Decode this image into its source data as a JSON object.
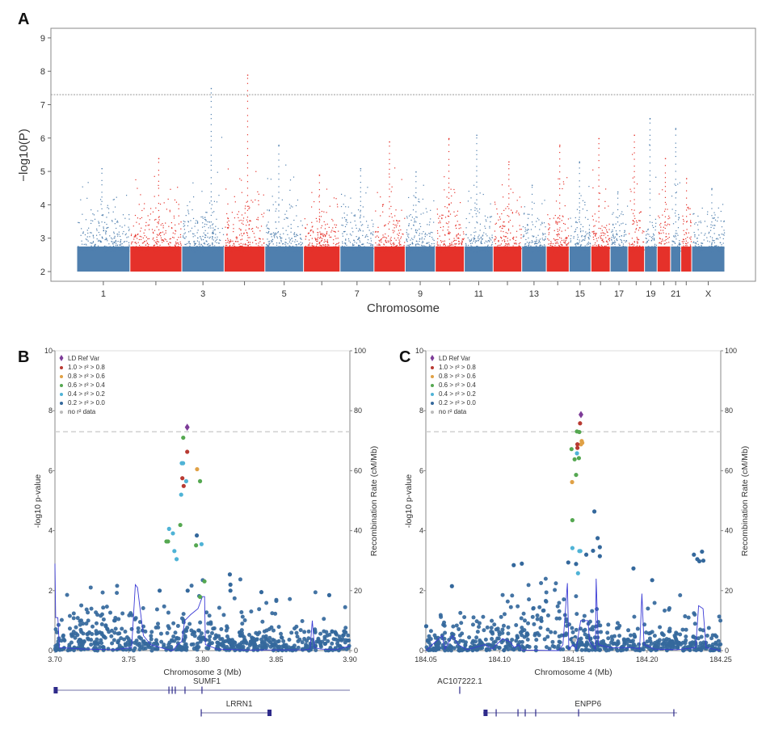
{
  "panels": {
    "a": "A",
    "b": "B",
    "c": "C"
  },
  "chart_data": [
    {
      "type": "scatter",
      "subtype": "manhattan",
      "xlabel": "Chromosome",
      "ylabel": "−log10(P)",
      "ylim": [
        2,
        9
      ],
      "yticks": [
        "2",
        "3",
        "4",
        "5",
        "6",
        "7",
        "8",
        "9"
      ],
      "significance_line": 7.3,
      "colors": {
        "odd": "#4f7fae",
        "even": "#e5312a"
      },
      "chromosomes": [
        {
          "name": "1",
          "length_mb": 249,
          "max": 5.1,
          "label": "1"
        },
        {
          "name": "2",
          "length_mb": 243,
          "max": 5.4,
          "label": ""
        },
        {
          "name": "3",
          "length_mb": 198,
          "max": 7.5,
          "label": "3"
        },
        {
          "name": "4",
          "length_mb": 191,
          "max": 7.9,
          "label": ""
        },
        {
          "name": "5",
          "length_mb": 181,
          "max": 5.8,
          "label": "5"
        },
        {
          "name": "6",
          "length_mb": 171,
          "max": 4.9,
          "label": ""
        },
        {
          "name": "7",
          "length_mb": 159,
          "max": 5.1,
          "label": "7"
        },
        {
          "name": "8",
          "length_mb": 146,
          "max": 5.9,
          "label": ""
        },
        {
          "name": "9",
          "length_mb": 141,
          "max": 5.0,
          "label": "9"
        },
        {
          "name": "10",
          "length_mb": 136,
          "max": 6.0,
          "label": ""
        },
        {
          "name": "11",
          "length_mb": 135,
          "max": 6.1,
          "label": "11"
        },
        {
          "name": "12",
          "length_mb": 134,
          "max": 5.3,
          "label": ""
        },
        {
          "name": "13",
          "length_mb": 115,
          "max": 4.6,
          "label": "13"
        },
        {
          "name": "14",
          "length_mb": 107,
          "max": 5.8,
          "label": ""
        },
        {
          "name": "15",
          "length_mb": 102,
          "max": 5.3,
          "label": "15"
        },
        {
          "name": "16",
          "length_mb": 90,
          "max": 6.0,
          "label": ""
        },
        {
          "name": "17",
          "length_mb": 83,
          "max": 4.4,
          "label": "17"
        },
        {
          "name": "18",
          "length_mb": 78,
          "max": 6.1,
          "label": ""
        },
        {
          "name": "19",
          "length_mb": 59,
          "max": 6.6,
          "label": "19"
        },
        {
          "name": "20",
          "length_mb": 63,
          "max": 5.4,
          "label": ""
        },
        {
          "name": "21",
          "length_mb": 48,
          "max": 6.3,
          "label": "21"
        },
        {
          "name": "22",
          "length_mb": 51,
          "max": 4.8,
          "label": ""
        },
        {
          "name": "X",
          "length_mb": 155,
          "max": 4.5,
          "label": "X"
        }
      ]
    },
    {
      "type": "scatter",
      "subtype": "locuszoom",
      "xlabel": "Chromosome 3 (Mb)",
      "ylabel": "-log10 p-value",
      "y2label": "Recombination Rate (cM/Mb)",
      "xlim": [
        3.7,
        3.9
      ],
      "xticks": [
        "3.70",
        "3.75",
        "3.80",
        "3.85",
        "3.90"
      ],
      "ylim": [
        0,
        10
      ],
      "yticks": [
        "0",
        "2",
        "4",
        "6",
        "8",
        "10"
      ],
      "y2lim": [
        0,
        100
      ],
      "y2ticks": [
        "0",
        "20",
        "40",
        "60",
        "80",
        "100"
      ],
      "significance_line": 7.3,
      "legend": [
        {
          "label": "LD Ref Var",
          "key": "ref"
        },
        {
          "label": "1.0 > r² > 0.8",
          "key": "r08"
        },
        {
          "label": "0.8 > r² > 0.6",
          "key": "r06"
        },
        {
          "label": "0.6 > r² > 0.4",
          "key": "r04"
        },
        {
          "label": "0.4 > r² > 0.2",
          "key": "r02"
        },
        {
          "label": "0.2 > r² > 0.0",
          "key": "r00"
        },
        {
          "label": "no r² data",
          "key": "na"
        }
      ],
      "points": [
        [
          3.7897,
          7.45,
          "ref"
        ],
        [
          3.787,
          7.1,
          "r04"
        ],
        [
          3.7897,
          6.63,
          "r08"
        ],
        [
          3.786,
          6.25,
          "r02"
        ],
        [
          3.7869,
          6.25,
          "r02"
        ],
        [
          3.7964,
          6.05,
          "r06"
        ],
        [
          3.7864,
          5.75,
          "r08"
        ],
        [
          3.789,
          5.65,
          "r02"
        ],
        [
          3.7984,
          5.65,
          "r04"
        ],
        [
          3.7873,
          5.49,
          "r08"
        ],
        [
          3.7856,
          5.2,
          "r02"
        ],
        [
          3.785,
          4.19,
          "r04"
        ],
        [
          3.7774,
          4.06,
          "r02"
        ],
        [
          3.78,
          3.91,
          "r02"
        ],
        [
          3.7756,
          3.64,
          "r04"
        ],
        [
          3.7767,
          3.64,
          "r04"
        ],
        [
          3.7962,
          3.84,
          "r00"
        ],
        [
          3.7957,
          3.51,
          "r04"
        ],
        [
          3.7994,
          3.55,
          "r02"
        ],
        [
          3.781,
          3.32,
          "r02"
        ],
        [
          3.7825,
          3.05,
          "r02"
        ],
        [
          3.8014,
          2.31,
          "r04"
        ],
        [
          3.7984,
          1.79,
          "r04"
        ],
        [
          3.79,
          2.0,
          "r00"
        ],
        [
          3.8186,
          2.54,
          "r00"
        ],
        [
          3.819,
          2.2,
          "r00"
        ],
        [
          3.819,
          2.0,
          "r00"
        ],
        [
          3.84,
          1.95,
          "r00"
        ],
        [
          3.886,
          1.85,
          "r00"
        ],
        [
          3.771,
          2.0,
          "r00"
        ]
      ],
      "recombination": [
        [
          3.7,
          29
        ],
        [
          3.7005,
          11
        ],
        [
          3.702,
          11
        ],
        [
          3.703,
          1
        ],
        [
          3.72,
          0.5
        ],
        [
          3.74,
          0.3
        ],
        [
          3.752,
          1
        ],
        [
          3.7545,
          22
        ],
        [
          3.756,
          21
        ],
        [
          3.758,
          13
        ],
        [
          3.76,
          5
        ],
        [
          3.765,
          2
        ],
        [
          3.775,
          0.5
        ],
        [
          3.78,
          0
        ],
        [
          3.783,
          2
        ],
        [
          3.786,
          3
        ],
        [
          3.788,
          10
        ],
        [
          3.792,
          12
        ],
        [
          3.797,
          14
        ],
        [
          3.8,
          18
        ],
        [
          3.8015,
          18
        ],
        [
          3.802,
          2
        ],
        [
          3.81,
          0.5
        ],
        [
          3.83,
          0.2
        ],
        [
          3.87,
          0.3
        ],
        [
          3.873,
          0.5
        ],
        [
          3.8745,
          10
        ],
        [
          3.876,
          1
        ],
        [
          3.88,
          0.5
        ],
        [
          3.89,
          0.3
        ],
        [
          3.9,
          1.5
        ]
      ],
      "genes": [
        {
          "name": "SUMF1",
          "label": "SUMF1",
          "start": 3.7005,
          "end": 3.9,
          "row": 0,
          "exons": [
            3.7005,
            3.7773,
            3.7795,
            3.7816,
            3.7882,
            3.7997
          ],
          "label_at": 3.803
        },
        {
          "name": "LRRN1",
          "label": "LRRN1",
          "start": 3.7992,
          "end": 3.8465,
          "row": 1,
          "exons": [
            3.7992,
            3.8455
          ],
          "label_at": 3.825
        }
      ]
    },
    {
      "type": "scatter",
      "subtype": "locuszoom",
      "xlabel": "Chromosome 4 (Mb)",
      "ylabel": "-log10 p-value",
      "y2label": "Recombination Rate (cM/Mb)",
      "xlim": [
        184.05,
        184.25
      ],
      "xticks": [
        "184.05",
        "184.10",
        "184.15",
        "184.20",
        "184.25"
      ],
      "ylim": [
        0,
        10
      ],
      "yticks": [
        "0",
        "2",
        "4",
        "6",
        "8",
        "10"
      ],
      "y2lim": [
        0,
        100
      ],
      "y2ticks": [
        "0",
        "20",
        "40",
        "60",
        "80",
        "100"
      ],
      "significance_line": 7.3,
      "legend": [
        {
          "label": "LD Ref Var",
          "key": "ref"
        },
        {
          "label": "1.0 > r² > 0.8",
          "key": "r08"
        },
        {
          "label": "0.8 > r² > 0.6",
          "key": "r06"
        },
        {
          "label": "0.6 > r² > 0.4",
          "key": "r04"
        },
        {
          "label": "0.4 > r² > 0.2",
          "key": "r02"
        },
        {
          "label": "0.2 > r² > 0.0",
          "key": "r00"
        },
        {
          "label": "no r² data",
          "key": "na"
        }
      ],
      "points": [
        [
          184.1552,
          7.87,
          "ref"
        ],
        [
          184.1546,
          7.58,
          "r08"
        ],
        [
          184.1525,
          7.31,
          "r04"
        ],
        [
          184.1541,
          7.29,
          "r04"
        ],
        [
          184.1557,
          6.99,
          "r06"
        ],
        [
          184.1561,
          6.93,
          "r06"
        ],
        [
          184.1552,
          6.88,
          "r06"
        ],
        [
          184.1528,
          6.88,
          "r08"
        ],
        [
          184.1528,
          6.76,
          "r08"
        ],
        [
          184.1488,
          6.72,
          "r04"
        ],
        [
          184.1525,
          6.58,
          "r02"
        ],
        [
          184.1509,
          6.38,
          "r04"
        ],
        [
          184.1538,
          6.42,
          "r04"
        ],
        [
          184.1519,
          5.86,
          "r04"
        ],
        [
          184.1492,
          5.62,
          "r06"
        ],
        [
          184.1494,
          4.35,
          "r04"
        ],
        [
          184.1494,
          3.42,
          "r02"
        ],
        [
          184.1541,
          3.32,
          "r02"
        ],
        [
          184.1548,
          3.32,
          "r02"
        ],
        [
          184.1532,
          2.58,
          "r02"
        ],
        [
          184.1643,
          4.64,
          "r00"
        ],
        [
          184.1665,
          3.75,
          "r00"
        ],
        [
          184.168,
          3.45,
          "r00"
        ],
        [
          184.168,
          3.15,
          "r00"
        ],
        [
          184.1634,
          3.33,
          "r00"
        ],
        [
          184.1588,
          3.2,
          "r00"
        ],
        [
          184.1466,
          2.94,
          "r00"
        ],
        [
          184.1519,
          2.89,
          "r00"
        ],
        [
          184.1508,
          0.36,
          "na"
        ],
        [
          184.1908,
          2.74,
          "r00"
        ],
        [
          184.2035,
          2.35,
          "r00"
        ],
        [
          184.2318,
          3.2,
          "r00"
        ],
        [
          184.2373,
          3.3,
          "r00"
        ],
        [
          184.2355,
          2.98,
          "r00"
        ],
        [
          184.2382,
          3.0,
          "r00"
        ],
        [
          184.2341,
          3.05,
          "r00"
        ],
        [
          184.1151,
          2.9,
          "r00"
        ],
        [
          184.1096,
          2.85,
          "r00"
        ],
        [
          184.0677,
          2.15,
          "r00"
        ]
      ],
      "recombination": [
        [
          184.05,
          0
        ],
        [
          184.061,
          5
        ],
        [
          184.063,
          0.5
        ],
        [
          184.068,
          5
        ],
        [
          184.072,
          2
        ],
        [
          184.078,
          0.3
        ],
        [
          184.09,
          2
        ],
        [
          184.095,
          0.5
        ],
        [
          184.102,
          4
        ],
        [
          184.107,
          3
        ],
        [
          184.11,
          1
        ],
        [
          184.113,
          2
        ],
        [
          184.115,
          0.2
        ],
        [
          184.14,
          0
        ],
        [
          184.143,
          2
        ],
        [
          184.146,
          22.5
        ],
        [
          184.147,
          0.5
        ],
        [
          184.15,
          2
        ],
        [
          184.152,
          0.5
        ],
        [
          184.155,
          10
        ],
        [
          184.16,
          10
        ],
        [
          184.161,
          3
        ],
        [
          184.165,
          0.5
        ],
        [
          184.1655,
          24
        ],
        [
          184.167,
          2
        ],
        [
          184.175,
          1
        ],
        [
          184.19,
          1
        ],
        [
          184.195,
          0.5
        ],
        [
          184.1965,
          19
        ],
        [
          184.198,
          2
        ],
        [
          184.205,
          0.5
        ],
        [
          184.22,
          0.3
        ],
        [
          184.233,
          1
        ],
        [
          184.235,
          15
        ],
        [
          184.238,
          14
        ],
        [
          184.24,
          1
        ],
        [
          184.25,
          0
        ]
      ],
      "genes": [
        {
          "name": "AC107222.1",
          "label": "AC107222.1",
          "start": 184.0728,
          "end": 184.0732,
          "row": 0,
          "exons": [
            184.073
          ],
          "label_at": 184.073
        },
        {
          "name": "ENPP6",
          "label": "ENPP6",
          "start": 184.0889,
          "end": 184.2204,
          "row": 1,
          "exons": [
            184.0905,
            184.0977,
            184.1125,
            184.1174,
            184.1245,
            184.1536,
            184.2182
          ],
          "label_at": 184.16
        }
      ]
    }
  ],
  "ld_colors": {
    "ref": "#7d3c98",
    "r08": "#b83a32",
    "r06": "#e0a146",
    "r04": "#55a851",
    "r02": "#4fb3d6",
    "r00": "#34689c",
    "na": "#bcbcbc"
  },
  "recomb_color": "#3b3bd6",
  "gene_color": "#2e2a8a"
}
